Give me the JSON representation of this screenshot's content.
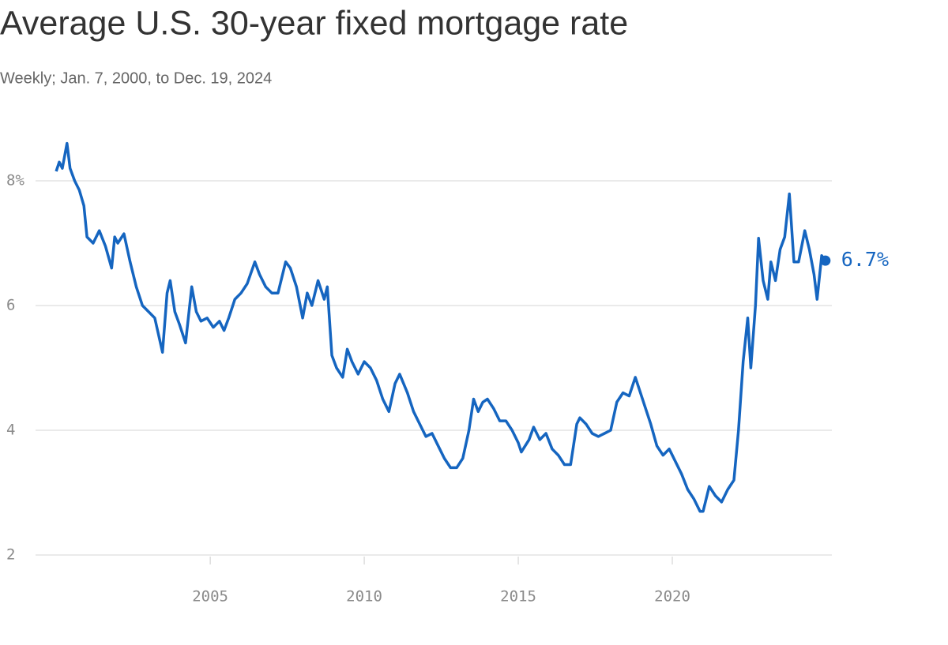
{
  "chart_data": {
    "type": "line",
    "title": "Average U.S. 30-year fixed mortgage rate",
    "subtitle": "Weekly; Jan. 7, 2000, to Dec. 19, 2024",
    "color": "#1565c0",
    "grid": true,
    "x": [
      2000.0,
      2000.1,
      2000.2,
      2000.35,
      2000.45,
      2000.6,
      2000.75,
      2000.9,
      2001.0,
      2001.2,
      2001.4,
      2001.6,
      2001.8,
      2001.9,
      2002.0,
      2002.2,
      2002.4,
      2002.6,
      2002.8,
      2003.0,
      2003.2,
      2003.45,
      2003.6,
      2003.7,
      2003.85,
      2004.0,
      2004.2,
      2004.4,
      2004.55,
      2004.7,
      2004.9,
      2005.1,
      2005.3,
      2005.45,
      2005.6,
      2005.8,
      2006.0,
      2006.2,
      2006.45,
      2006.6,
      2006.8,
      2007.0,
      2007.2,
      2007.45,
      2007.6,
      2007.8,
      2008.0,
      2008.15,
      2008.3,
      2008.5,
      2008.7,
      2008.8,
      2008.95,
      2009.1,
      2009.3,
      2009.45,
      2009.6,
      2009.8,
      2010.0,
      2010.2,
      2010.4,
      2010.6,
      2010.8,
      2011.0,
      2011.15,
      2011.4,
      2011.6,
      2011.8,
      2012.0,
      2012.2,
      2012.45,
      2012.6,
      2012.8,
      2013.0,
      2013.2,
      2013.4,
      2013.55,
      2013.7,
      2013.85,
      2014.0,
      2014.2,
      2014.4,
      2014.6,
      2014.8,
      2015.0,
      2015.1,
      2015.35,
      2015.5,
      2015.7,
      2015.9,
      2016.1,
      2016.3,
      2016.5,
      2016.7,
      2016.9,
      2017.0,
      2017.2,
      2017.4,
      2017.6,
      2017.8,
      2018.0,
      2018.2,
      2018.4,
      2018.6,
      2018.8,
      2018.9,
      2019.1,
      2019.3,
      2019.5,
      2019.7,
      2019.9,
      2020.1,
      2020.3,
      2020.5,
      2020.7,
      2020.9,
      2021.0,
      2021.2,
      2021.4,
      2021.6,
      2021.8,
      2022.0,
      2022.15,
      2022.3,
      2022.45,
      2022.55,
      2022.7,
      2022.8,
      2022.95,
      2023.1,
      2023.2,
      2023.35,
      2023.5,
      2023.65,
      2023.8,
      2023.95,
      2024.1,
      2024.3,
      2024.45,
      2024.6,
      2024.7,
      2024.85,
      2024.97
    ],
    "values": [
      8.15,
      8.3,
      8.2,
      8.6,
      8.2,
      8.0,
      7.85,
      7.6,
      7.1,
      7.0,
      7.2,
      6.95,
      6.6,
      7.1,
      7.0,
      7.15,
      6.7,
      6.3,
      6.0,
      5.9,
      5.8,
      5.25,
      6.2,
      6.4,
      5.9,
      5.7,
      5.4,
      6.3,
      5.9,
      5.75,
      5.8,
      5.65,
      5.75,
      5.6,
      5.8,
      6.1,
      6.2,
      6.35,
      6.7,
      6.5,
      6.3,
      6.2,
      6.2,
      6.7,
      6.6,
      6.3,
      5.8,
      6.2,
      6.0,
      6.4,
      6.1,
      6.3,
      5.2,
      5.0,
      4.85,
      5.3,
      5.1,
      4.9,
      5.1,
      5.0,
      4.8,
      4.5,
      4.3,
      4.75,
      4.9,
      4.6,
      4.3,
      4.1,
      3.9,
      3.95,
      3.7,
      3.55,
      3.4,
      3.4,
      3.55,
      4.0,
      4.5,
      4.3,
      4.45,
      4.5,
      4.35,
      4.15,
      4.15,
      4.0,
      3.8,
      3.65,
      3.85,
      4.05,
      3.85,
      3.95,
      3.7,
      3.6,
      3.45,
      3.45,
      4.1,
      4.2,
      4.1,
      3.95,
      3.9,
      3.95,
      4.0,
      4.45,
      4.6,
      4.55,
      4.85,
      4.7,
      4.4,
      4.1,
      3.75,
      3.6,
      3.7,
      3.5,
      3.3,
      3.05,
      2.9,
      2.7,
      2.7,
      3.1,
      2.95,
      2.85,
      3.05,
      3.2,
      4.0,
      5.1,
      5.8,
      5.0,
      6.0,
      7.08,
      6.4,
      6.1,
      6.7,
      6.4,
      6.9,
      7.1,
      7.79,
      6.7,
      6.7,
      7.2,
      6.9,
      6.5,
      6.1,
      6.8,
      6.72
    ],
    "xlim": [
      1999.33,
      2025.18
    ],
    "ylim": [
      2,
      9
    ],
    "xticks": [
      2005,
      2010,
      2015,
      2020
    ],
    "yticks": [
      2,
      4,
      6,
      {
        "value": 8,
        "label": "8%"
      }
    ],
    "annotations": [
      {
        "text": "6.7%",
        "x": 2024.97,
        "y": 6.72
      }
    ]
  }
}
